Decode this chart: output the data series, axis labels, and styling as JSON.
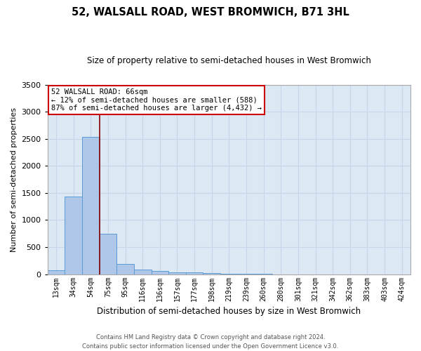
{
  "title": "52, WALSALL ROAD, WEST BROMWICH, B71 3HL",
  "subtitle": "Size of property relative to semi-detached houses in West Bromwich",
  "xlabel": "Distribution of semi-detached houses by size in West Bromwich",
  "ylabel": "Number of semi-detached properties",
  "categories": [
    "13sqm",
    "34sqm",
    "54sqm",
    "75sqm",
    "95sqm",
    "116sqm",
    "136sqm",
    "157sqm",
    "177sqm",
    "198sqm",
    "219sqm",
    "239sqm",
    "260sqm",
    "280sqm",
    "301sqm",
    "321sqm",
    "342sqm",
    "362sqm",
    "383sqm",
    "403sqm",
    "424sqm"
  ],
  "values": [
    75,
    1435,
    2530,
    750,
    195,
    85,
    62,
    38,
    28,
    22,
    10,
    5,
    2,
    0,
    0,
    0,
    0,
    0,
    0,
    0,
    0
  ],
  "bar_color": "#aec6e8",
  "bar_edgecolor": "#5b9bd5",
  "annotation_text_line1": "52 WALSALL ROAD: 66sqm",
  "annotation_text_line2": "← 12% of semi-detached houses are smaller (588)",
  "annotation_text_line3": "87% of semi-detached houses are larger (4,432) →",
  "annotation_box_facecolor": "#ffffff",
  "annotation_box_edgecolor": "#cc0000",
  "line_color": "#880000",
  "grid_color": "#c8d4e8",
  "background_color": "#dde8f5",
  "ylim": [
    0,
    3500
  ],
  "yticks": [
    0,
    500,
    1000,
    1500,
    2000,
    2500,
    3000,
    3500
  ],
  "footer1": "Contains HM Land Registry data © Crown copyright and database right 2024.",
  "footer2": "Contains public sector information licensed under the Open Government Licence v3.0."
}
